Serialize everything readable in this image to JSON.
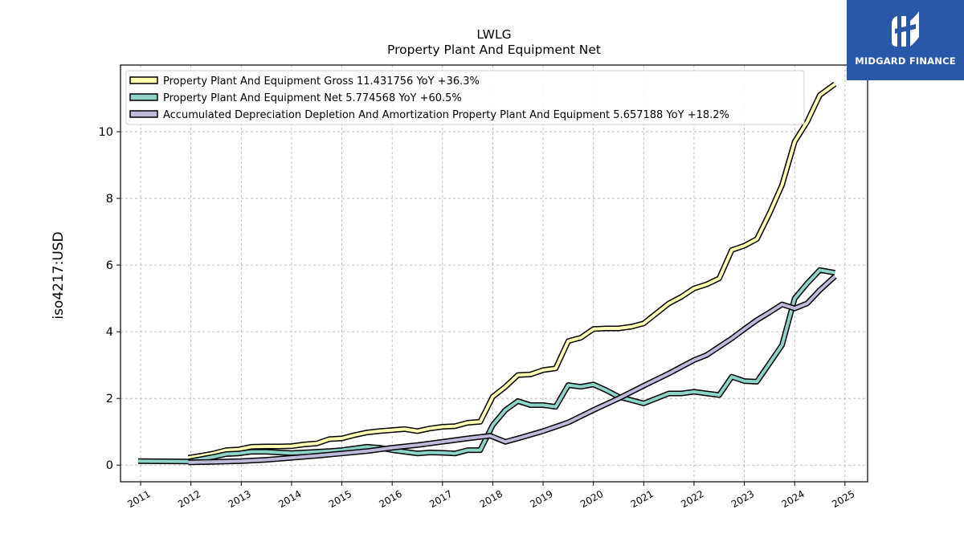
{
  "chart_data": {
    "type": "line",
    "title": "LWLG",
    "subtitle": "Property Plant And Equipment Net",
    "ylabel": "iso4217:USD",
    "xlabel": "",
    "xlim": [
      2010.6,
      2025.45
    ],
    "ylim": [
      -0.5,
      12.0
    ],
    "x_ticks": [
      "2011",
      "2012",
      "2013",
      "2014",
      "2015",
      "2016",
      "2017",
      "2018",
      "2019",
      "2020",
      "2021",
      "2022",
      "2023",
      "2024",
      "2025"
    ],
    "y_ticks": [
      "0",
      "2",
      "4",
      "6",
      "8",
      "10"
    ],
    "grid": true,
    "legend_position": "upper-left",
    "series": [
      {
        "name": "Property Plant And Equipment Gross  11.431756 YoY +36.3%",
        "color": "#ffffb3",
        "points": [
          [
            2011.95,
            0.22
          ],
          [
            2012.2,
            0.28
          ],
          [
            2012.45,
            0.35
          ],
          [
            2012.7,
            0.45
          ],
          [
            2012.95,
            0.47
          ],
          [
            2013.2,
            0.55
          ],
          [
            2013.5,
            0.56
          ],
          [
            2013.75,
            0.56
          ],
          [
            2014.0,
            0.57
          ],
          [
            2014.25,
            0.62
          ],
          [
            2014.5,
            0.65
          ],
          [
            2014.75,
            0.78
          ],
          [
            2015.0,
            0.8
          ],
          [
            2015.25,
            0.9
          ],
          [
            2015.5,
            0.98
          ],
          [
            2015.75,
            1.02
          ],
          [
            2016.0,
            1.05
          ],
          [
            2016.25,
            1.08
          ],
          [
            2016.5,
            1.02
          ],
          [
            2016.75,
            1.1
          ],
          [
            2017.0,
            1.15
          ],
          [
            2017.25,
            1.17
          ],
          [
            2017.5,
            1.27
          ],
          [
            2017.75,
            1.3
          ],
          [
            2018.0,
            2.05
          ],
          [
            2018.25,
            2.35
          ],
          [
            2018.5,
            2.7
          ],
          [
            2018.75,
            2.72
          ],
          [
            2019.0,
            2.85
          ],
          [
            2019.25,
            2.9
          ],
          [
            2019.5,
            3.72
          ],
          [
            2019.75,
            3.82
          ],
          [
            2020.0,
            4.08
          ],
          [
            2020.25,
            4.1
          ],
          [
            2020.5,
            4.1
          ],
          [
            2020.75,
            4.15
          ],
          [
            2021.0,
            4.25
          ],
          [
            2021.25,
            4.55
          ],
          [
            2021.5,
            4.85
          ],
          [
            2021.75,
            5.05
          ],
          [
            2022.0,
            5.3
          ],
          [
            2022.25,
            5.42
          ],
          [
            2022.5,
            5.6
          ],
          [
            2022.75,
            6.45
          ],
          [
            2023.0,
            6.58
          ],
          [
            2023.25,
            6.78
          ],
          [
            2023.5,
            7.55
          ],
          [
            2023.75,
            8.4
          ],
          [
            2024.0,
            9.7
          ],
          [
            2024.25,
            10.3
          ],
          [
            2024.5,
            11.1
          ],
          [
            2024.8,
            11.43
          ]
        ]
      },
      {
        "name": "Property Plant And Equipment Net  5.774568 YoY +60.5%",
        "color": "#8dd3c7",
        "points": [
          [
            2010.95,
            0.12
          ],
          [
            2011.95,
            0.11
          ],
          [
            2012.2,
            0.18
          ],
          [
            2012.45,
            0.25
          ],
          [
            2012.7,
            0.33
          ],
          [
            2012.95,
            0.35
          ],
          [
            2013.2,
            0.4
          ],
          [
            2013.5,
            0.4
          ],
          [
            2013.75,
            0.38
          ],
          [
            2014.0,
            0.36
          ],
          [
            2014.25,
            0.38
          ],
          [
            2014.5,
            0.4
          ],
          [
            2014.75,
            0.42
          ],
          [
            2015.0,
            0.45
          ],
          [
            2015.25,
            0.5
          ],
          [
            2015.5,
            0.55
          ],
          [
            2015.75,
            0.52
          ],
          [
            2016.0,
            0.45
          ],
          [
            2016.25,
            0.4
          ],
          [
            2016.5,
            0.35
          ],
          [
            2016.75,
            0.38
          ],
          [
            2017.0,
            0.37
          ],
          [
            2017.25,
            0.35
          ],
          [
            2017.5,
            0.45
          ],
          [
            2017.75,
            0.45
          ],
          [
            2018.0,
            1.2
          ],
          [
            2018.25,
            1.65
          ],
          [
            2018.5,
            1.92
          ],
          [
            2018.75,
            1.8
          ],
          [
            2019.0,
            1.8
          ],
          [
            2019.25,
            1.75
          ],
          [
            2019.5,
            2.4
          ],
          [
            2019.75,
            2.35
          ],
          [
            2020.0,
            2.42
          ],
          [
            2020.25,
            2.25
          ],
          [
            2020.5,
            2.05
          ],
          [
            2020.75,
            1.95
          ],
          [
            2021.0,
            1.85
          ],
          [
            2021.25,
            2.0
          ],
          [
            2021.5,
            2.15
          ],
          [
            2021.75,
            2.15
          ],
          [
            2022.0,
            2.2
          ],
          [
            2022.25,
            2.15
          ],
          [
            2022.5,
            2.1
          ],
          [
            2022.75,
            2.65
          ],
          [
            2023.0,
            2.52
          ],
          [
            2023.25,
            2.5
          ],
          [
            2023.5,
            3.05
          ],
          [
            2023.75,
            3.6
          ],
          [
            2024.0,
            5.0
          ],
          [
            2024.25,
            5.45
          ],
          [
            2024.5,
            5.85
          ],
          [
            2024.8,
            5.77
          ]
        ]
      },
      {
        "name": "Accumulated Depreciation Depletion And Amortization Property Plant And Equipment  5.657188 YoY +18.2%",
        "color": "#bebada",
        "points": [
          [
            2011.95,
            0.08
          ],
          [
            2012.5,
            0.1
          ],
          [
            2013.0,
            0.12
          ],
          [
            2013.5,
            0.16
          ],
          [
            2014.0,
            0.22
          ],
          [
            2014.5,
            0.28
          ],
          [
            2015.0,
            0.35
          ],
          [
            2015.5,
            0.42
          ],
          [
            2016.0,
            0.52
          ],
          [
            2016.5,
            0.6
          ],
          [
            2017.0,
            0.7
          ],
          [
            2017.5,
            0.8
          ],
          [
            2017.95,
            0.88
          ],
          [
            2018.25,
            0.7
          ],
          [
            2018.5,
            0.8
          ],
          [
            2019.0,
            1.02
          ],
          [
            2019.5,
            1.28
          ],
          [
            2020.0,
            1.65
          ],
          [
            2020.5,
            2.0
          ],
          [
            2021.0,
            2.38
          ],
          [
            2021.5,
            2.75
          ],
          [
            2022.0,
            3.15
          ],
          [
            2022.25,
            3.3
          ],
          [
            2022.5,
            3.55
          ],
          [
            2022.75,
            3.8
          ],
          [
            2023.0,
            4.08
          ],
          [
            2023.25,
            4.35
          ],
          [
            2023.5,
            4.58
          ],
          [
            2023.75,
            4.82
          ],
          [
            2024.0,
            4.7
          ],
          [
            2024.25,
            4.85
          ],
          [
            2024.5,
            5.25
          ],
          [
            2024.8,
            5.66
          ]
        ]
      }
    ]
  },
  "brand": {
    "name": "MIDGARD FINANCE",
    "logo_icon": "midgard-logo-icon",
    "background": "#2a57a8"
  }
}
